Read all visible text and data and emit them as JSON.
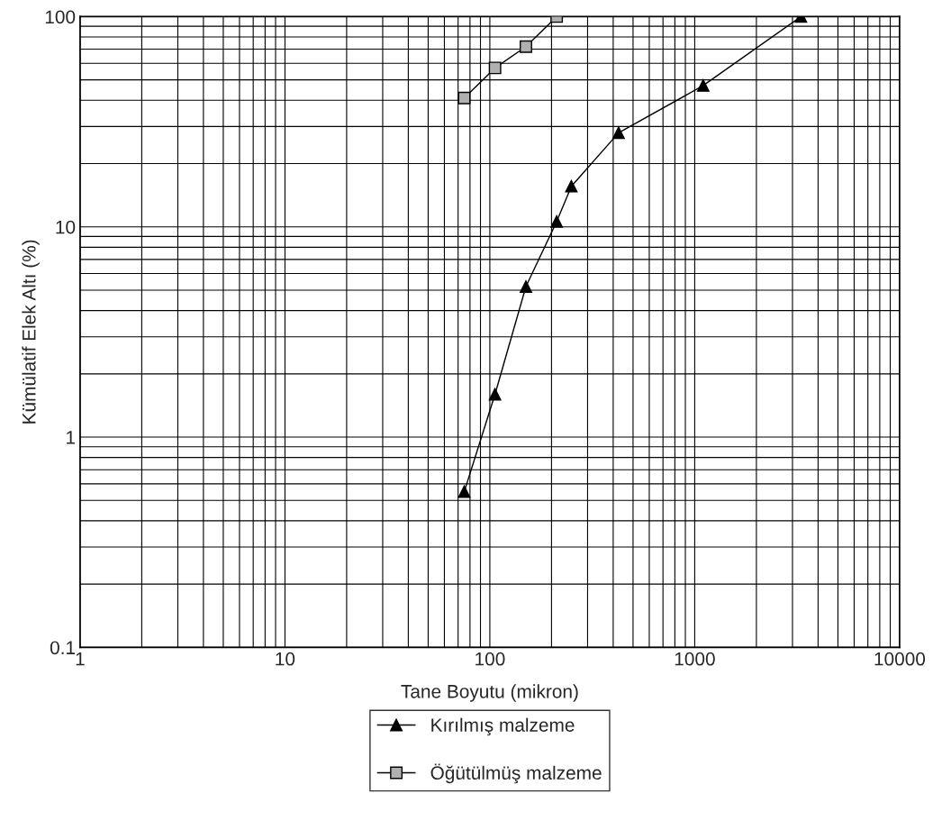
{
  "chart_data": {
    "type": "line",
    "xlabel": "Tane Boyutu (mikron)",
    "ylabel": "Kümülatif Elek Altı (%)",
    "log": "xy",
    "grid": true,
    "legend": "bottom",
    "xlim": [
      1,
      10000
    ],
    "xticks": [
      1,
      10,
      100,
      1000,
      10000
    ],
    "ylim": [
      0.1,
      100
    ],
    "yticks": [
      0.1,
      1,
      10,
      100
    ],
    "series": [
      {
        "name": "Kırılmış malzeme",
        "color": "#000000",
        "marker": "triangle",
        "x": [
          75,
          106,
          150,
          212,
          250,
          425,
          1100,
          3300
        ],
        "values": [
          0.55,
          1.6,
          5.2,
          10.6,
          15.6,
          28,
          47,
          100
        ]
      },
      {
        "name": "Öğütülmüş malzeme",
        "color": "#000000",
        "marker": "square",
        "x": [
          75,
          106,
          150,
          212
        ],
        "values": [
          41,
          57,
          72,
          100
        ]
      }
    ]
  }
}
